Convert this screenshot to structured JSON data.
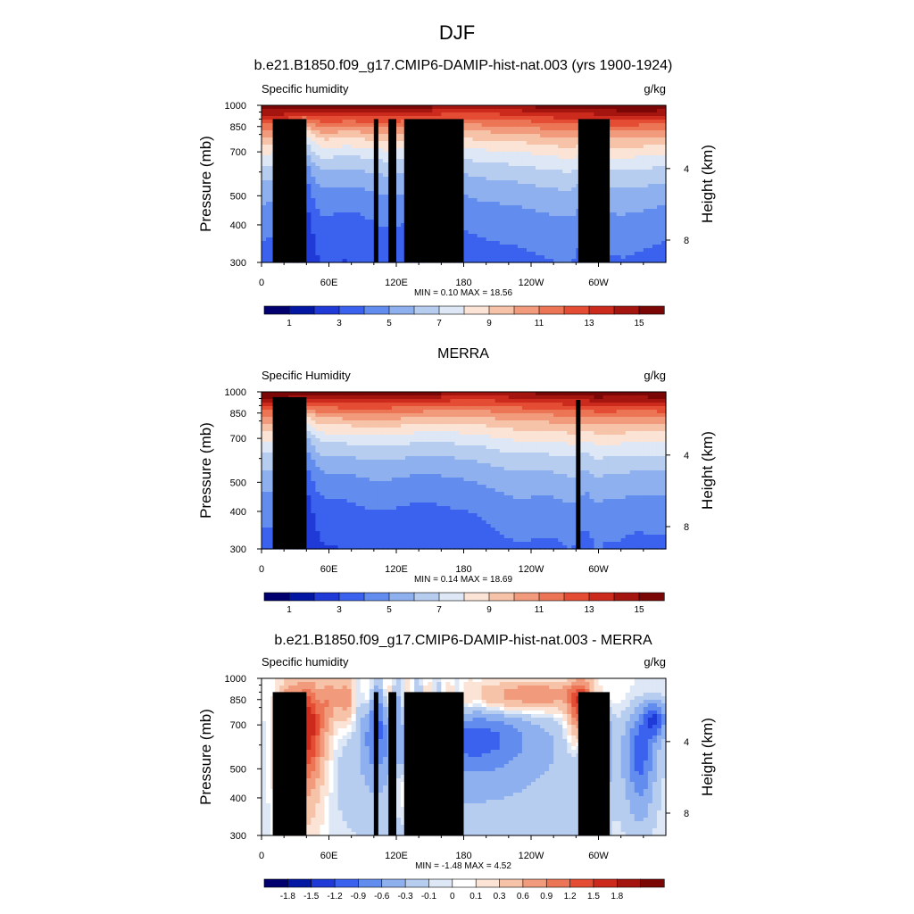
{
  "figure": {
    "title": "DJF"
  },
  "colors": {
    "seq": [
      "#02006e",
      "#0417a3",
      "#1f3ad6",
      "#3a62ee",
      "#628ced",
      "#8eb0ef",
      "#b7cdef",
      "#dde7f5",
      "#fbe3d5",
      "#f6c2a8",
      "#f19b7c",
      "#ec7555",
      "#e44d34",
      "#cc2a1d",
      "#a4150f",
      "#7a0606"
    ],
    "div": [
      "#02006e",
      "#0417a3",
      "#1f3ad6",
      "#3a62ee",
      "#628ced",
      "#8eb0ef",
      "#b7cdef",
      "#dde7f5",
      "#ffffff",
      "#fbe3d5",
      "#f6c2a8",
      "#f19b7c",
      "#ec7555",
      "#e44d34",
      "#cc2a1d",
      "#a4150f",
      "#7a0606"
    ],
    "topography": "#000000"
  },
  "chart_data": [
    {
      "type": "heatmap",
      "title": "b.e21.B1850.f09_g17.CMIP6-DAMIP-hist-nat.003 (yrs 1900-1924)",
      "left_label": "Specific humidity",
      "right_label": "g/kg",
      "ylabel": "Pressure (mb)",
      "ylabel_right": "Height (km)",
      "yticks": [
        "300",
        "400",
        "500",
        "700",
        "850",
        "1000"
      ],
      "yticks_right": [
        "8",
        "4"
      ],
      "xticks": [
        "0",
        "60E",
        "120E",
        "180",
        "120W",
        "60W"
      ],
      "ylim": [
        1000,
        300
      ],
      "xlim": [
        0,
        360
      ],
      "stats": "MIN =   0.10  MAX =  18.56",
      "colorbar_labels": [
        "1",
        "3",
        "5",
        "7",
        "9",
        "11",
        "13",
        "15"
      ],
      "colorbar_levels": [
        0.5,
        1,
        2,
        3,
        4,
        5,
        6,
        7,
        8,
        9,
        10,
        11,
        12,
        13,
        14,
        15
      ],
      "field": "clim",
      "variant": 0,
      "topography": [
        [
          10,
          40,
          900
        ],
        [
          25,
          34,
          850
        ],
        [
          100,
          104,
          900
        ],
        [
          113,
          120,
          900
        ],
        [
          127,
          180,
          900
        ],
        [
          282,
          310,
          900
        ]
      ]
    },
    {
      "type": "heatmap",
      "title": "MERRA",
      "left_label": "Specific Humidity",
      "right_label": "g/kg",
      "ylabel": "Pressure (mb)",
      "ylabel_right": "Height (km)",
      "yticks": [
        "300",
        "400",
        "500",
        "700",
        "850",
        "1000"
      ],
      "yticks_right": [
        "8",
        "4"
      ],
      "xticks": [
        "0",
        "60E",
        "120E",
        "180",
        "120W",
        "60W"
      ],
      "ylim": [
        1000,
        300
      ],
      "xlim": [
        0,
        360
      ],
      "stats": "MIN =   0.14  MAX =  18.69",
      "colorbar_labels": [
        "1",
        "3",
        "5",
        "7",
        "9",
        "11",
        "13",
        "15"
      ],
      "colorbar_levels": [
        0.5,
        1,
        2,
        3,
        4,
        5,
        6,
        7,
        8,
        9,
        10,
        11,
        12,
        13,
        14,
        15
      ],
      "field": "clim",
      "variant": 1,
      "topography": [
        [
          10,
          40,
          960
        ],
        [
          20,
          30,
          935
        ],
        [
          28,
          35,
          910
        ],
        [
          33,
          40,
          880
        ],
        [
          280,
          284,
          940
        ]
      ]
    },
    {
      "type": "heatmap",
      "title": "b.e21.B1850.f09_g17.CMIP6-DAMIP-hist-nat.003 - MERRA",
      "left_label": "Specific humidity",
      "right_label": "g/kg",
      "ylabel": "Pressure (mb)",
      "ylabel_right": "Height (km)",
      "yticks": [
        "300",
        "400",
        "500",
        "700",
        "850",
        "1000"
      ],
      "yticks_right": [
        "8",
        "4"
      ],
      "xticks": [
        "0",
        "60E",
        "120E",
        "180",
        "120W",
        "60W"
      ],
      "ylim": [
        1000,
        300
      ],
      "xlim": [
        0,
        360
      ],
      "stats": "MIN =  -1.48  MAX =   4.52",
      "colorbar_labels": [
        "-1.8",
        "-1.5",
        "-1.2",
        "-0.9",
        "-0.6",
        "-0.3",
        "-0.1",
        "0",
        "0.1",
        "0.3",
        "0.6",
        "0.9",
        "1.2",
        "1.5",
        "1.8"
      ],
      "colorbar_levels": [
        -1.8,
        -1.5,
        -1.2,
        -0.9,
        -0.6,
        -0.3,
        -0.1,
        0,
        0.1,
        0.3,
        0.6,
        0.9,
        1.2,
        1.5,
        1.8
      ],
      "field": "diff",
      "variant": 0,
      "topography": [
        [
          10,
          40,
          900
        ],
        [
          25,
          34,
          850
        ],
        [
          100,
          104,
          900
        ],
        [
          113,
          120,
          900
        ],
        [
          127,
          180,
          900
        ],
        [
          282,
          310,
          900
        ]
      ]
    }
  ]
}
